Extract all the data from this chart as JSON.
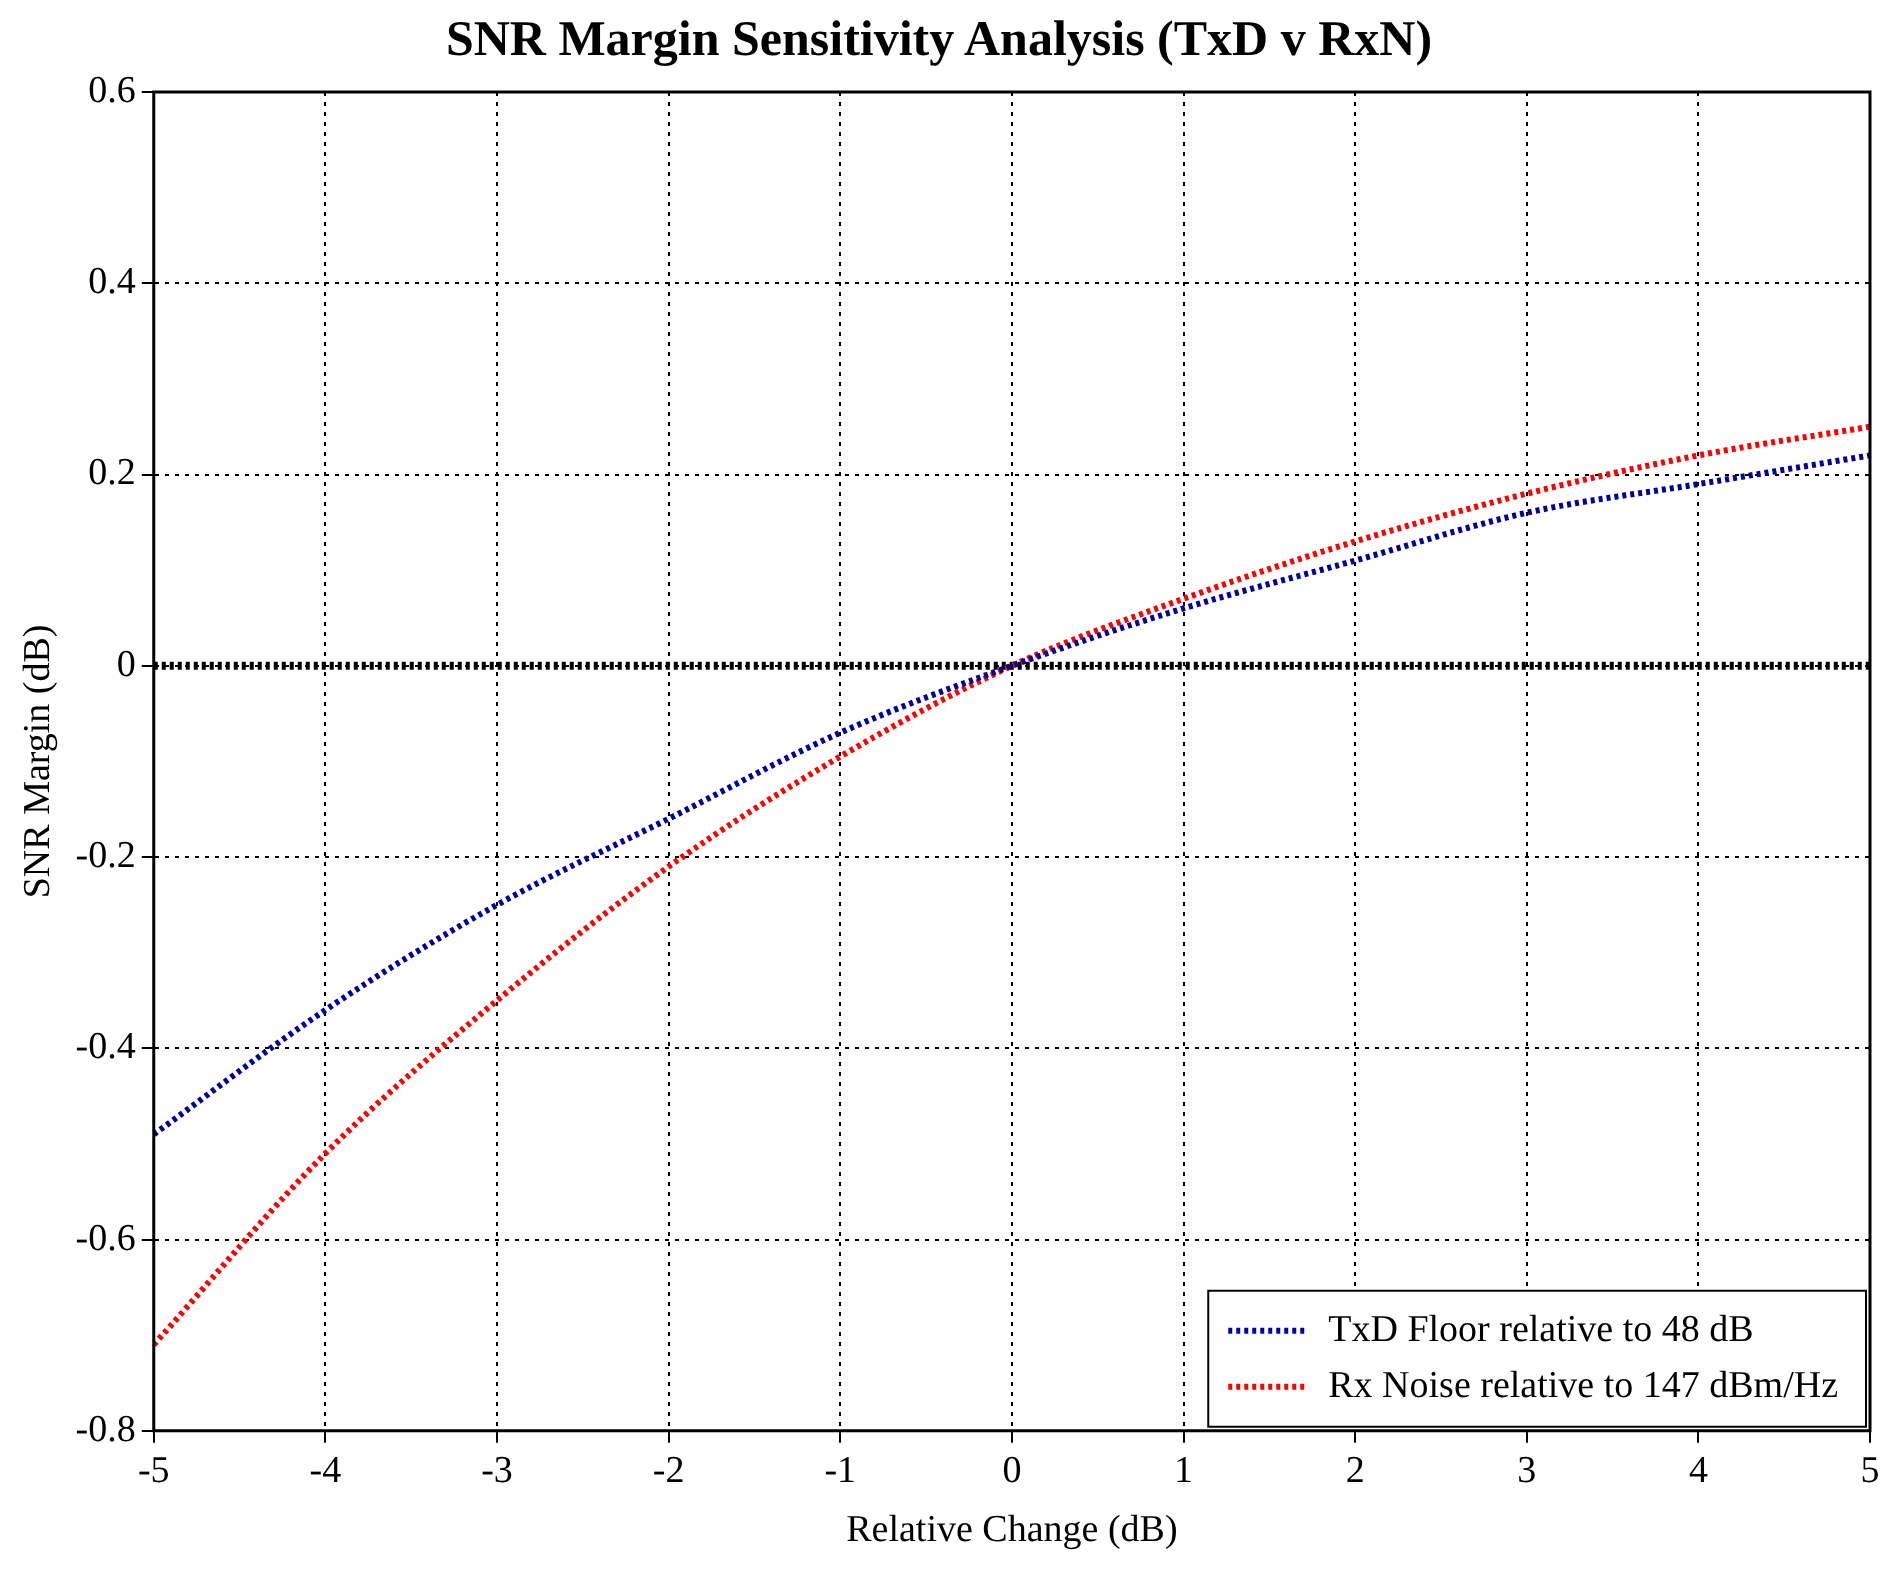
{
  "chart_data": {
    "type": "line",
    "title": "SNR Margin Sensitivity Analysis (TxD v RxN)",
    "xlabel": "Relative Change (dB)",
    "ylabel": "SNR Margin (dB)",
    "x": [
      -5,
      -4,
      -3,
      -2,
      -1,
      0,
      1,
      2,
      3,
      4,
      5
    ],
    "series": [
      {
        "name": "TxD Floor relative to 48 dB",
        "color": "#0000a0",
        "values": [
          -0.49,
          -0.36,
          -0.25,
          -0.16,
          -0.07,
          0,
          0.06,
          0.11,
          0.16,
          0.19,
          0.22
        ]
      },
      {
        "name": "Rx Noise relative to 147 dBm/Hz",
        "color": "#ff0000",
        "values": [
          -0.71,
          -0.51,
          -0.35,
          -0.21,
          -0.095,
          0,
          0.07,
          0.13,
          0.18,
          0.22,
          0.25
        ]
      }
    ],
    "xlim": [
      -5,
      5
    ],
    "xticks": [
      -5,
      -4,
      -3,
      -2,
      -1,
      0,
      1,
      2,
      3,
      4,
      5
    ],
    "ylim": [
      -0.8,
      0.6
    ],
    "yticks": [
      -0.8,
      -0.6,
      -0.4,
      -0.2,
      0,
      0.2,
      0.4,
      0.6
    ],
    "ref_lines": [
      {
        "axis": "y",
        "value": 0,
        "color": "#000000",
        "line_style": "dotted"
      }
    ],
    "grid": true,
    "legend": "bottom right",
    "marker": "none",
    "line_style": "dotted"
  }
}
